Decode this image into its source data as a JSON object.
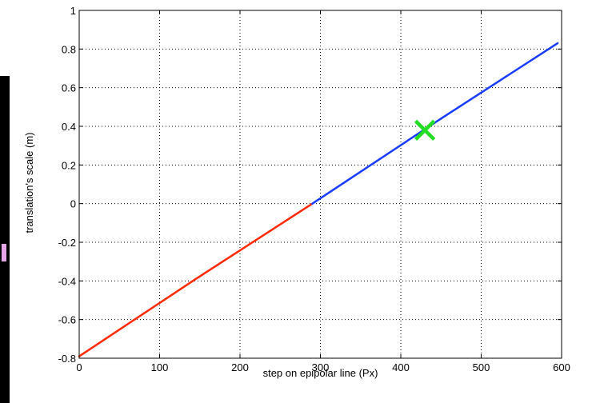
{
  "chart_data": {
    "type": "line",
    "title": "",
    "xlabel": "step on epipolar line (Px)",
    "ylabel": "translation's scale (m)",
    "xlim": [
      0,
      600
    ],
    "ylim": [
      -0.8,
      1
    ],
    "grid": true,
    "x_ticks": [
      "0",
      "100",
      "200",
      "300",
      "400",
      "500",
      "600"
    ],
    "y_ticks": [
      "-0.8",
      "-0.6",
      "-0.4",
      "-0.2",
      "0",
      "0.2",
      "0.4",
      "0.6",
      "0.8",
      "1"
    ],
    "series": [
      {
        "color": "#ff2a00",
        "points": [
          [
            0,
            -0.79
          ],
          [
            145,
            -0.39
          ],
          [
            290,
            0.0
          ]
        ]
      },
      {
        "color": "#1a3cff",
        "points": [
          [
            290,
            0.0
          ],
          [
            450,
            0.44
          ],
          [
            595,
            0.83
          ]
        ]
      }
    ],
    "markers": [
      {
        "shape": "x",
        "color": "#22dd22",
        "x": 430,
        "y": 0.38
      }
    ]
  },
  "decor": {
    "left_bar_color": "#000000",
    "mark_color": "#e7a6e7"
  }
}
